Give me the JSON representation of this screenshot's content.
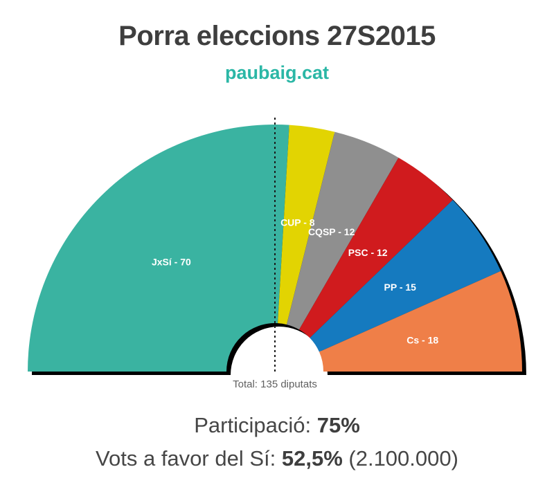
{
  "header": {
    "title": "Porra eleccions 27S2015",
    "subtitle": "paubaig.cat",
    "subtitle_color": "#2bb7a6",
    "title_color": "#3e3e3e"
  },
  "chart_data": {
    "type": "pie",
    "variant": "half-donut-seat-chart",
    "title": "Porra eleccions 27S2015",
    "total_seats": 135,
    "total_label": "Total: 135 diputats",
    "majority_line": "dashed vertical at 50% of seats",
    "legend_position": "labels inside segments",
    "series": [
      {
        "id": "jxsi",
        "name": "JxSí",
        "seats": 70,
        "label": "JxSí - 70",
        "color": "#3ab3a1"
      },
      {
        "id": "cup",
        "name": "CUP",
        "seats": 8,
        "label": "CUP - 8",
        "color": "#e2d402"
      },
      {
        "id": "cqsp",
        "name": "CQSP",
        "seats": 12,
        "label": "CQSP - 12",
        "color": "#8f8f8f"
      },
      {
        "id": "psc",
        "name": "PSC",
        "seats": 12,
        "label": "PSC - 12",
        "color": "#d01b1e"
      },
      {
        "id": "pp",
        "name": "PP",
        "seats": 15,
        "label": "PP - 15",
        "color": "#157abf"
      },
      {
        "id": "cs",
        "name": "Cs",
        "seats": 18,
        "label": "Cs - 18",
        "color": "#ef7f48"
      }
    ]
  },
  "footer": {
    "participation_label": "Participació:",
    "participation_value": "75%",
    "votes_label": "Vots a favor del Sí:",
    "votes_value": "52,5%",
    "votes_note": "(2.100.000)"
  }
}
